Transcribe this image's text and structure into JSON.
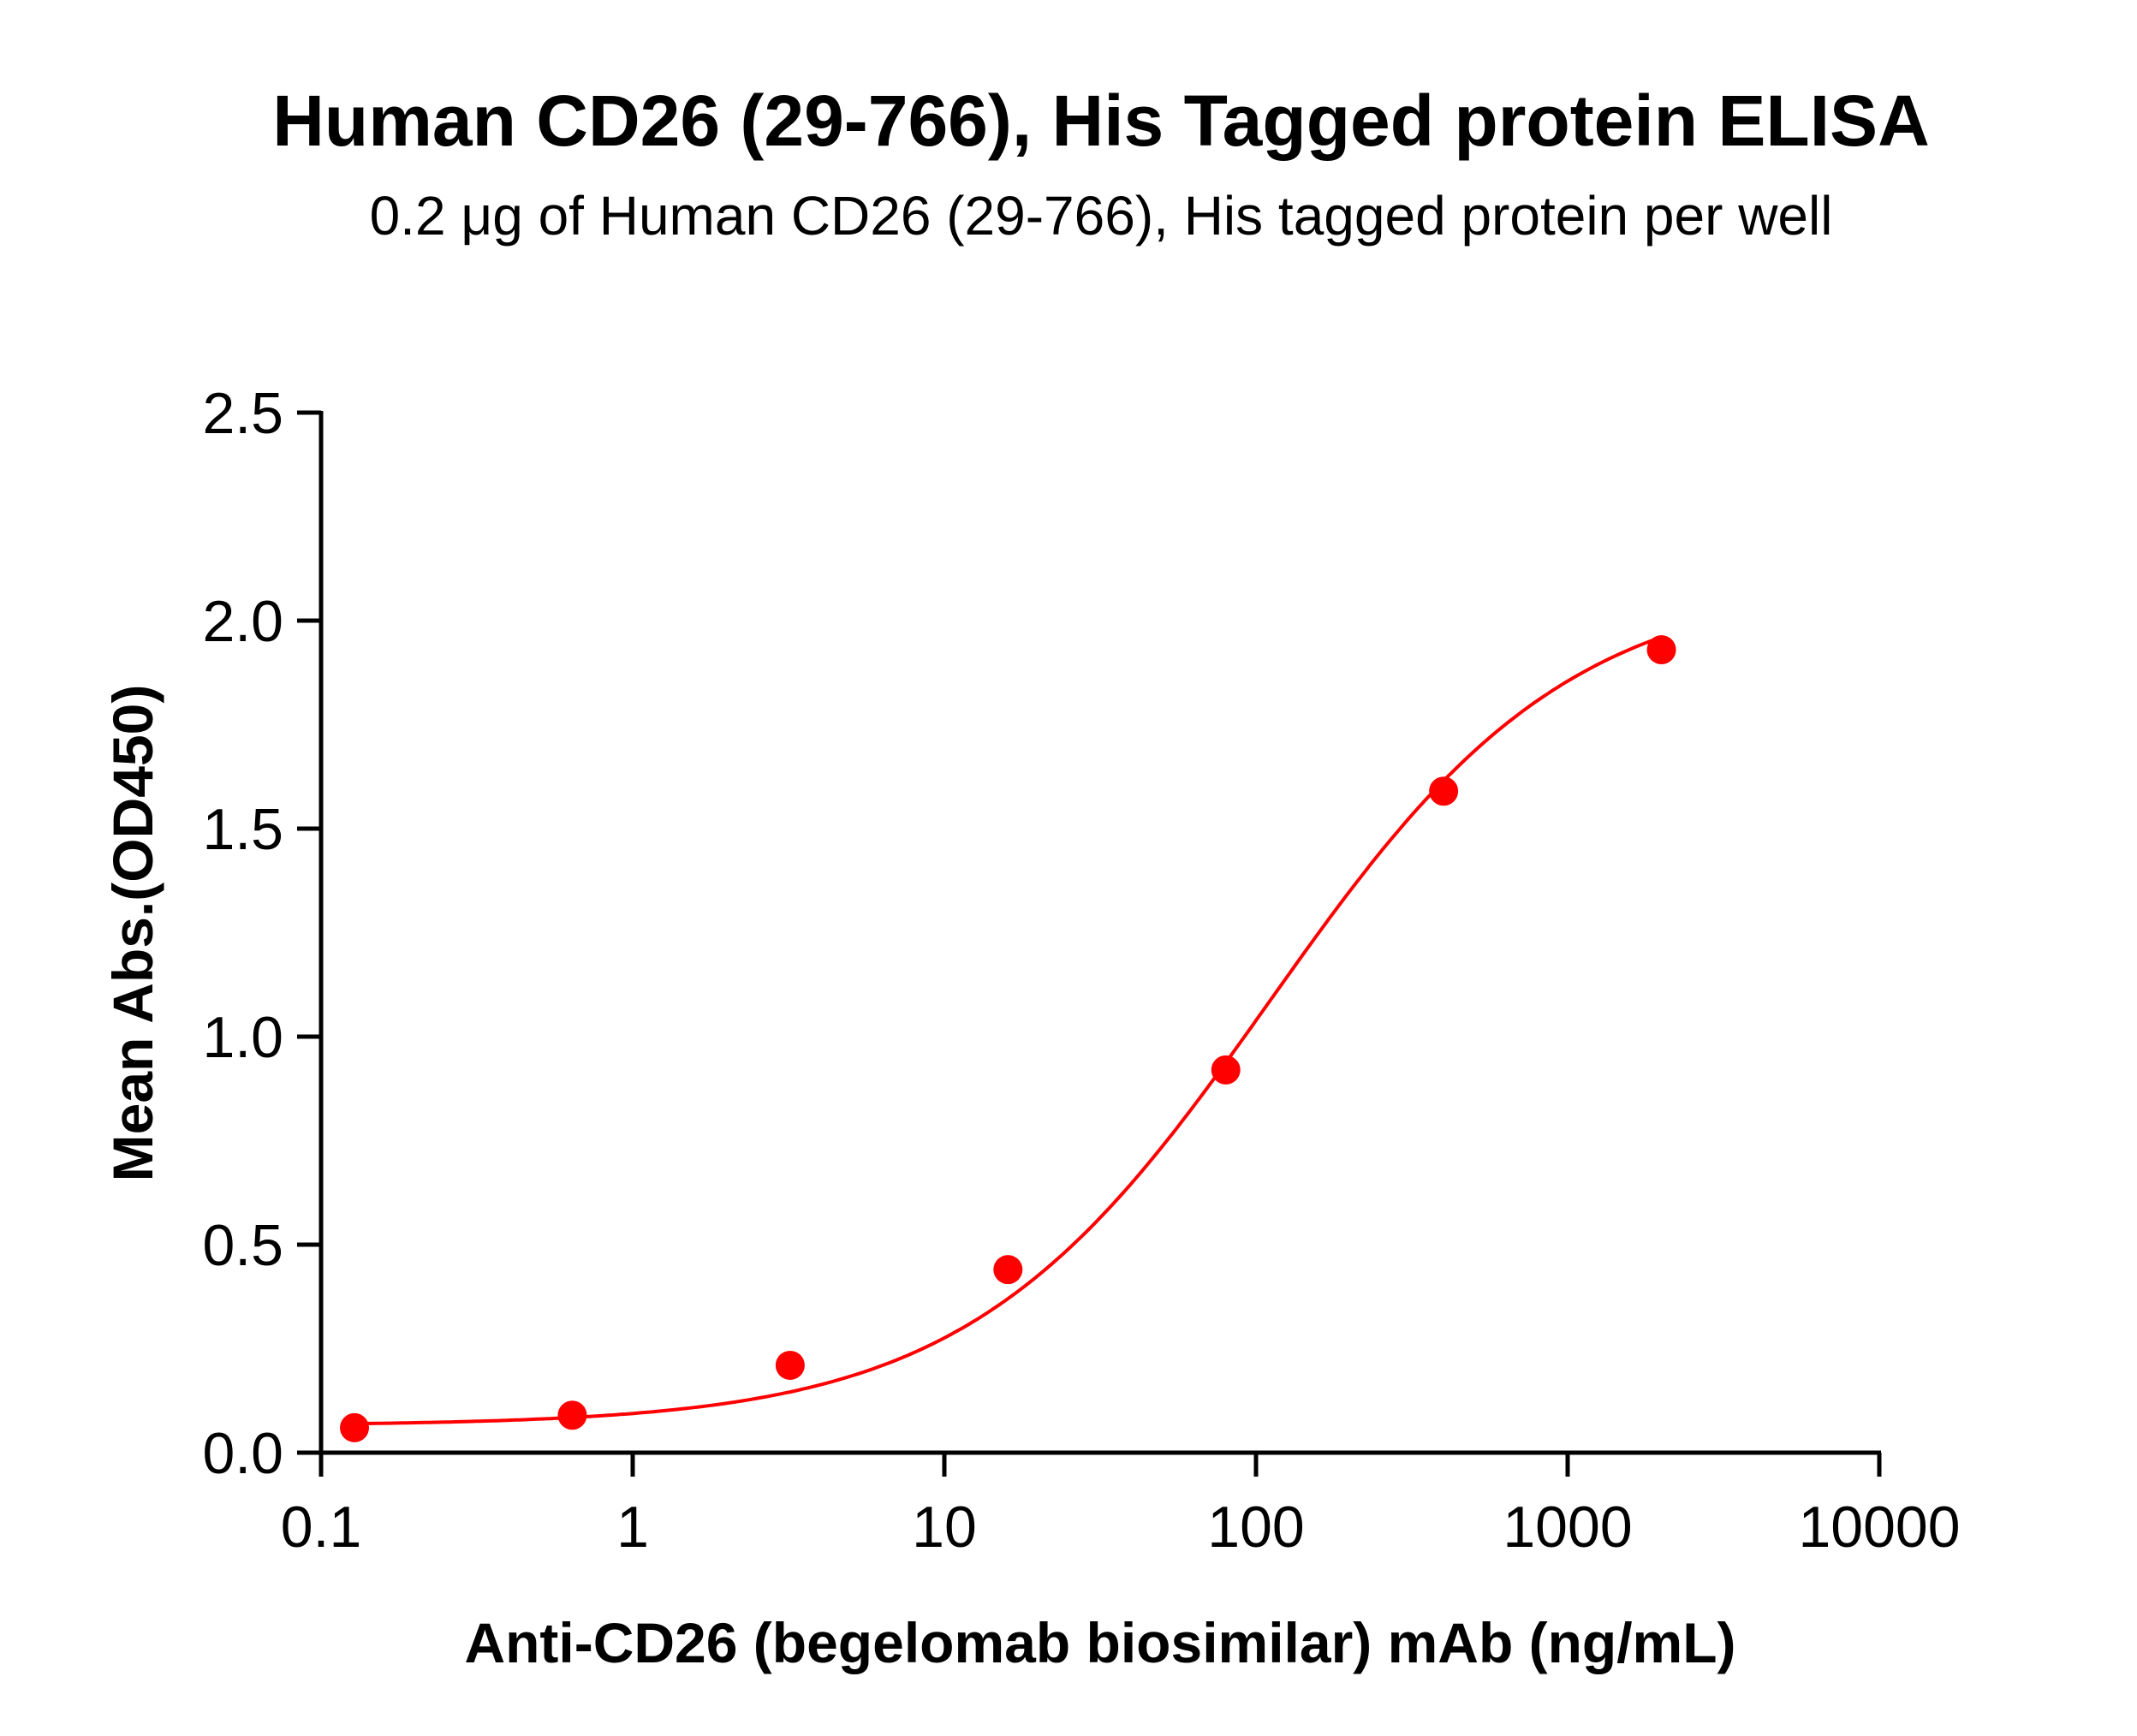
{
  "chart_data": {
    "type": "scatter",
    "title": "Human CD26 (29-766), His Tagged protein ELISA",
    "subtitle": "0.2 μg of Human CD26 (29-766), His tagged protein per well",
    "xlabel": "Anti-CD26 (begelomab biosimilar) mAb (ng/mL)",
    "ylabel": "Mean Abs.(OD450)",
    "xscale": "log",
    "xlim": [
      0.1,
      10000
    ],
    "ylim": [
      0,
      2.5
    ],
    "xticks": [
      "0.1",
      "1",
      "10",
      "100",
      "1000",
      "10000"
    ],
    "yticks": [
      "0.0",
      "0.5",
      "1.0",
      "1.5",
      "2.0",
      "2.5"
    ],
    "grid": false,
    "color": "#ff0000",
    "fit_curve": "4PL",
    "series": [
      {
        "x": [
          0.128,
          0.64,
          3.2,
          16,
          80,
          400,
          2000
        ],
        "y": [
          0.06,
          0.09,
          0.21,
          0.44,
          0.92,
          1.59,
          1.93
        ]
      }
    ]
  }
}
